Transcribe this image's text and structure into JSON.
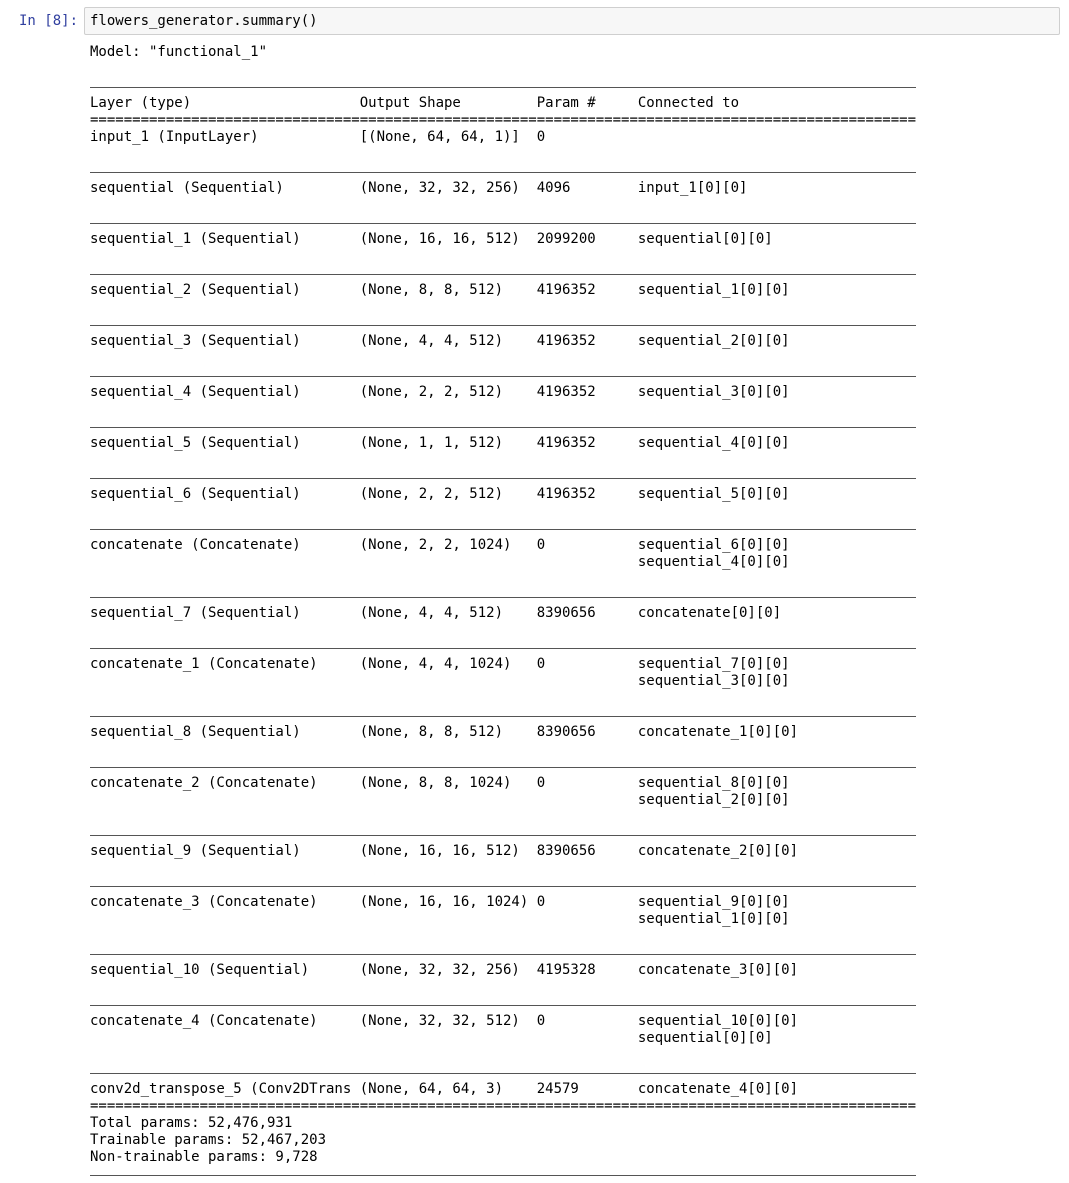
{
  "cell": {
    "prompt": "In [8]:",
    "code": "flowers_generator.summary()"
  },
  "output": {
    "model_line": "Model: \"functional_1\"",
    "headers": [
      "Layer (type)",
      "Output Shape",
      "Param #",
      "Connected to"
    ],
    "rows": [
      {
        "layer": "input_1 (InputLayer)",
        "shape": "[(None, 64, 64, 1)]",
        "params": "0",
        "connected": []
      },
      {
        "layer": "sequential (Sequential)",
        "shape": "(None, 32, 32, 256)",
        "params": "4096",
        "connected": [
          "input_1[0][0]"
        ]
      },
      {
        "layer": "sequential_1 (Sequential)",
        "shape": "(None, 16, 16, 512)",
        "params": "2099200",
        "connected": [
          "sequential[0][0]"
        ]
      },
      {
        "layer": "sequential_2 (Sequential)",
        "shape": "(None, 8, 8, 512)",
        "params": "4196352",
        "connected": [
          "sequential_1[0][0]"
        ]
      },
      {
        "layer": "sequential_3 (Sequential)",
        "shape": "(None, 4, 4, 512)",
        "params": "4196352",
        "connected": [
          "sequential_2[0][0]"
        ]
      },
      {
        "layer": "sequential_4 (Sequential)",
        "shape": "(None, 2, 2, 512)",
        "params": "4196352",
        "connected": [
          "sequential_3[0][0]"
        ]
      },
      {
        "layer": "sequential_5 (Sequential)",
        "shape": "(None, 1, 1, 512)",
        "params": "4196352",
        "connected": [
          "sequential_4[0][0]"
        ]
      },
      {
        "layer": "sequential_6 (Sequential)",
        "shape": "(None, 2, 2, 512)",
        "params": "4196352",
        "connected": [
          "sequential_5[0][0]"
        ]
      },
      {
        "layer": "concatenate (Concatenate)",
        "shape": "(None, 2, 2, 1024)",
        "params": "0",
        "connected": [
          "sequential_6[0][0]",
          "sequential_4[0][0]"
        ]
      },
      {
        "layer": "sequential_7 (Sequential)",
        "shape": "(None, 4, 4, 512)",
        "params": "8390656",
        "connected": [
          "concatenate[0][0]"
        ]
      },
      {
        "layer": "concatenate_1 (Concatenate)",
        "shape": "(None, 4, 4, 1024)",
        "params": "0",
        "connected": [
          "sequential_7[0][0]",
          "sequential_3[0][0]"
        ]
      },
      {
        "layer": "sequential_8 (Sequential)",
        "shape": "(None, 8, 8, 512)",
        "params": "8390656",
        "connected": [
          "concatenate_1[0][0]"
        ]
      },
      {
        "layer": "concatenate_2 (Concatenate)",
        "shape": "(None, 8, 8, 1024)",
        "params": "0",
        "connected": [
          "sequential_8[0][0]",
          "sequential_2[0][0]"
        ]
      },
      {
        "layer": "sequential_9 (Sequential)",
        "shape": "(None, 16, 16, 512)",
        "params": "8390656",
        "connected": [
          "concatenate_2[0][0]"
        ]
      },
      {
        "layer": "concatenate_3 (Concatenate)",
        "shape": "(None, 16, 16, 1024)",
        "params": "0",
        "connected": [
          "sequential_9[0][0]",
          "sequential_1[0][0]"
        ]
      },
      {
        "layer": "sequential_10 (Sequential)",
        "shape": "(None, 32, 32, 256)",
        "params": "4195328",
        "connected": [
          "concatenate_3[0][0]"
        ]
      },
      {
        "layer": "concatenate_4 (Concatenate)",
        "shape": "(None, 32, 32, 512)",
        "params": "0",
        "connected": [
          "sequential_10[0][0]",
          "sequential[0][0]"
        ]
      },
      {
        "layer": "conv2d_transpose_5 (Conv2DTrans",
        "shape": "(None, 64, 64, 3)",
        "params": "24579",
        "connected": [
          "concatenate_4[0][0]"
        ]
      }
    ],
    "totals": [
      "Total params: 52,476,931",
      "Trainable params: 52,467,203",
      "Non-trainable params: 9,728"
    ]
  }
}
